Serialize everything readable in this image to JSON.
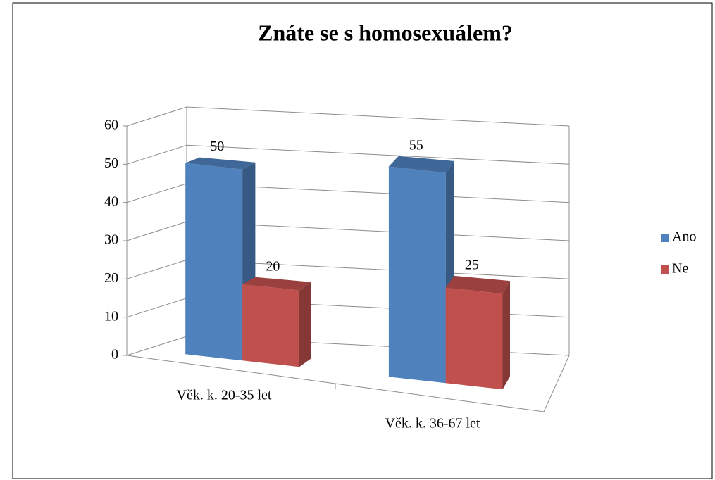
{
  "chart_data": {
    "type": "bar3d",
    "title": "Znáte se s homosexuálem?",
    "categories": [
      "Věk. k. 20-35 let",
      "Věk. k. 36-67 let"
    ],
    "series": [
      {
        "name": "Ano",
        "color": "#4f81bd",
        "values": [
          50,
          55
        ]
      },
      {
        "name": "Ne",
        "color": "#c0504d",
        "values": [
          20,
          25
        ]
      }
    ],
    "ylim": [
      0,
      60
    ],
    "yticks": [
      0,
      10,
      20,
      30,
      40,
      50,
      60
    ],
    "grid": true,
    "legend": "right"
  }
}
